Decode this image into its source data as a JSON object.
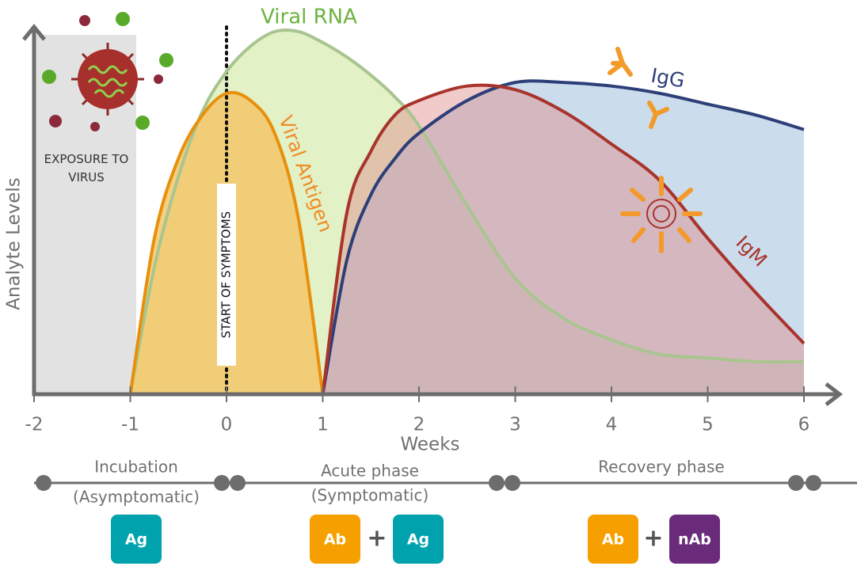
{
  "chart_data": {
    "type": "area",
    "y_label": "Analyte Levels",
    "x_label": "Weeks",
    "xlim": [
      -2,
      6
    ],
    "ylim": [
      0,
      100
    ],
    "xticks": [
      -2,
      -1,
      0,
      1,
      2,
      3,
      4,
      5,
      6
    ],
    "x": [
      -1,
      -0.75,
      -0.5,
      -0.25,
      0,
      0.25,
      0.5,
      0.75,
      1,
      1.25,
      1.5,
      1.75,
      2,
      2.5,
      3,
      3.5,
      4,
      4.5,
      5,
      5.5,
      6
    ],
    "series": [
      {
        "name": "Viral RNA",
        "color": "#a9c58f",
        "fill": "#dff0c0",
        "label_color": "#6db33f",
        "values": [
          0,
          35,
          60,
          78,
          89,
          96,
          100,
          100,
          97,
          93,
          88,
          82,
          74,
          52,
          32,
          21,
          15,
          11,
          10,
          9,
          9
        ]
      },
      {
        "name": "Viral Antigen",
        "color": "#e8900c",
        "fill": "#f5c76a",
        "label_color": "#f08a24",
        "values": [
          0,
          43,
          65,
          77,
          83,
          81,
          72,
          48,
          0,
          null,
          null,
          null,
          null,
          null,
          null,
          null,
          null,
          null,
          null,
          null,
          null
        ]
      },
      {
        "name": "IgG",
        "color": "#2d3f78",
        "fill": "#b9d0e6",
        "label_color": "#2d3f78",
        "values": [
          null,
          null,
          null,
          null,
          null,
          null,
          null,
          null,
          0,
          37,
          55,
          65,
          72,
          81,
          86,
          86,
          85,
          83,
          80,
          77,
          73
        ]
      },
      {
        "name": "IgM",
        "color": "#a8342c",
        "fill": "#e08a8a",
        "label_color": "#a8342c",
        "values": [
          null,
          null,
          null,
          null,
          null,
          null,
          null,
          null,
          0,
          50,
          67,
          77,
          81,
          85,
          84,
          78,
          69,
          59,
          43,
          28,
          14
        ]
      }
    ],
    "annotations": {
      "exposure": "EXPOSURE TO VIRUS",
      "symptoms": "START OF SYMPTOMS"
    }
  },
  "phases": [
    {
      "name": "Incubation",
      "note": "(Asymptomatic)",
      "tests": [
        {
          "label": "Ag",
          "color": "#00a3ad"
        }
      ]
    },
    {
      "name": "Acute phase",
      "note": "(Symptomatic)",
      "tests": [
        {
          "label": "Ab",
          "color": "#f5a000"
        },
        {
          "label": "Ag",
          "color": "#00a3ad"
        }
      ]
    },
    {
      "name": "Recovery phase",
      "tests": [
        {
          "label": "Ab",
          "color": "#f5a000"
        },
        {
          "label": "nAb",
          "color": "#6a2c7a"
        }
      ]
    }
  ],
  "plus": "+"
}
